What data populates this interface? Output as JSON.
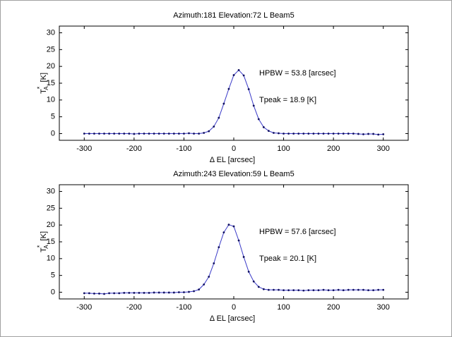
{
  "chart_data": [
    {
      "type": "line",
      "title": "Azimuth:181 Elevation:72 L Beam5",
      "xlabel": "Δ EL  [arcsec]",
      "ylabel": {
        "base": "T",
        "sup": "*",
        "sub": "A",
        "unit": "[K]"
      },
      "annotations": [
        "HPBW = 53.8 [arcsec]",
        "Tpeak = 18.9 [K]"
      ],
      "xlim": [
        -350,
        350
      ],
      "ylim": [
        -2,
        32
      ],
      "xticks": [
        -300,
        -200,
        -100,
        0,
        100,
        200,
        300
      ],
      "yticks": [
        0,
        5,
        10,
        15,
        20,
        25,
        30
      ],
      "x": [
        -300,
        -290,
        -280,
        -270,
        -260,
        -250,
        -240,
        -230,
        -220,
        -210,
        -200,
        -190,
        -180,
        -170,
        -160,
        -150,
        -140,
        -130,
        -120,
        -110,
        -100,
        -90,
        -80,
        -70,
        -60,
        -50,
        -40,
        -30,
        -20,
        -10,
        0,
        10,
        20,
        30,
        40,
        50,
        60,
        70,
        80,
        90,
        100,
        110,
        120,
        130,
        140,
        150,
        160,
        170,
        180,
        190,
        200,
        210,
        220,
        230,
        240,
        250,
        260,
        270,
        280,
        290,
        300
      ],
      "series": [
        {
          "color": "#3a3ac8",
          "values": [
            0,
            0,
            0,
            0,
            0,
            0,
            0,
            0,
            0,
            0,
            -0.1,
            0,
            0,
            0,
            0,
            0,
            0,
            0,
            0,
            0,
            0,
            0.1,
            0,
            0,
            0.2,
            0.7,
            2.1,
            4.7,
            8.9,
            13.3,
            17.4,
            18.9,
            17.3,
            13.2,
            8.3,
            4.3,
            1.9,
            0.8,
            0.2,
            0.1,
            0,
            0,
            0,
            0,
            0,
            0,
            0,
            0,
            0,
            0,
            0,
            0,
            0,
            0,
            0,
            -0.1,
            -0.2,
            -0.1,
            -0.1,
            -0.3,
            -0.2
          ]
        }
      ]
    },
    {
      "type": "line",
      "title": "Azimuth:243 Elevation:59 L Beam5",
      "xlabel": "Δ EL  [arcsec]",
      "ylabel": {
        "base": "T",
        "sup": "*",
        "sub": "A",
        "unit": "[K]"
      },
      "annotations": [
        "HPBW = 57.6 [arcsec]",
        "Tpeak = 20.1 [K]"
      ],
      "xlim": [
        -350,
        350
      ],
      "ylim": [
        -2,
        32
      ],
      "xticks": [
        -300,
        -200,
        -100,
        0,
        100,
        200,
        300
      ],
      "yticks": [
        0,
        5,
        10,
        15,
        20,
        25,
        30
      ],
      "x": [
        -300,
        -290,
        -280,
        -270,
        -260,
        -250,
        -240,
        -230,
        -220,
        -210,
        -200,
        -190,
        -180,
        -170,
        -160,
        -150,
        -140,
        -130,
        -120,
        -110,
        -100,
        -90,
        -80,
        -70,
        -60,
        -50,
        -40,
        -30,
        -20,
        -10,
        0,
        10,
        20,
        30,
        40,
        50,
        60,
        70,
        80,
        90,
        100,
        110,
        120,
        130,
        140,
        150,
        160,
        170,
        180,
        190,
        200,
        210,
        220,
        230,
        240,
        250,
        260,
        270,
        280,
        290,
        300
      ],
      "series": [
        {
          "color": "#3a3ac8",
          "values": [
            -0.3,
            -0.3,
            -0.4,
            -0.4,
            -0.5,
            -0.3,
            -0.3,
            -0.3,
            -0.2,
            -0.2,
            -0.2,
            -0.2,
            -0.2,
            -0.2,
            -0.1,
            -0.1,
            -0.1,
            -0.1,
            -0.1,
            0,
            0,
            0.1,
            0.3,
            0.8,
            2.3,
            4.6,
            8.6,
            13.4,
            17.8,
            20.1,
            19.6,
            15.4,
            10.5,
            6.1,
            3.2,
            1.6,
            0.9,
            0.7,
            0.7,
            0.7,
            0.6,
            0.6,
            0.6,
            0.6,
            0.5,
            0.6,
            0.6,
            0.6,
            0.7,
            0.6,
            0.6,
            0.7,
            0.6,
            0.7,
            0.7,
            0.7,
            0.7,
            0.6,
            0.6,
            0.7,
            0.7
          ]
        }
      ]
    }
  ]
}
